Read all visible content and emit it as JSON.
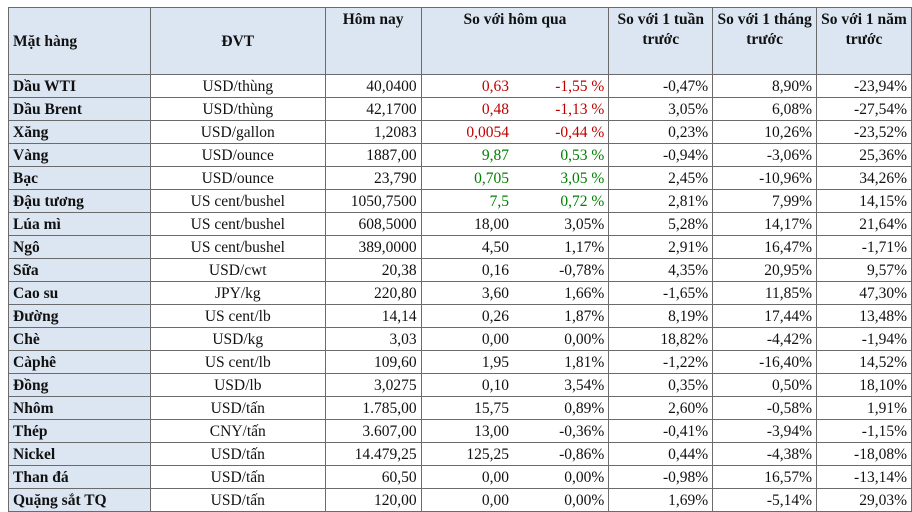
{
  "headers": {
    "item": "Mặt hàng",
    "unit": "ĐVT",
    "today": "Hôm nay",
    "vs_yesterday": "So với hôm  qua",
    "vs_week": "So với 1 tuần trước",
    "vs_month": "So với 1 tháng trước",
    "vs_year": "So với 1 năm trước"
  },
  "colors": {
    "header_bg": "#dce6f2",
    "negative": "#c00000",
    "positive": "#008000",
    "neutral": "#111111",
    "border": "#6b6b6b"
  },
  "rows": [
    {
      "item": "Dầu WTI",
      "unit": "USD/thùng",
      "price": "40,0400",
      "chg": "0,63",
      "pct": "-1,55 %",
      "week": "-0,47%",
      "month": "8,90%",
      "year": "-23,94%",
      "color": "neg"
    },
    {
      "item": "Dầu Brent",
      "unit": "USD/thùng",
      "price": "42,1700",
      "chg": "0,48",
      "pct": "-1,13 %",
      "week": "3,05%",
      "month": "6,08%",
      "year": "-27,54%",
      "color": "neg"
    },
    {
      "item": "Xăng",
      "unit": "USD/gallon",
      "price": "1,2083",
      "chg": "0,0054",
      "pct": "-0,44 %",
      "week": "0,23%",
      "month": "10,26%",
      "year": "-23,52%",
      "color": "neg"
    },
    {
      "item": "Vàng",
      "unit": "USD/ounce",
      "price": "1887,00",
      "chg": "9,87",
      "pct": "0,53 %",
      "week": "-0,94%",
      "month": "-3,06%",
      "year": "25,36%",
      "color": "pos"
    },
    {
      "item": "Bạc",
      "unit": "USD/ounce",
      "price": "23,790",
      "chg": "0,705",
      "pct": "3,05 %",
      "week": "2,45%",
      "month": "-10,96%",
      "year": "34,26%",
      "color": "pos"
    },
    {
      "item": "Đậu tương",
      "unit": "US cent/bushel",
      "price": "1050,7500",
      "chg": "7,5",
      "pct": "0,72 %",
      "week": "2,81%",
      "month": "7,99%",
      "year": "14,15%",
      "color": "pos"
    },
    {
      "item": "Lúa mì",
      "unit": "US cent/bushel",
      "price": "608,5000",
      "chg": "18,00",
      "pct": "3,05%",
      "week": "5,28%",
      "month": "14,17%",
      "year": "21,64%",
      "color": "blk"
    },
    {
      "item": "Ngô",
      "unit": "US cent/bushel",
      "price": "389,0000",
      "chg": "4,50",
      "pct": "1,17%",
      "week": "2,91%",
      "month": "16,47%",
      "year": "-1,71%",
      "color": "blk"
    },
    {
      "item": "Sữa",
      "unit": "USD/cwt",
      "price": "20,38",
      "chg": "0,16",
      "pct": "-0,78%",
      "week": "4,35%",
      "month": "20,95%",
      "year": "9,57%",
      "color": "blk"
    },
    {
      "item": "Cao su",
      "unit": "JPY/kg",
      "price": "220,80",
      "chg": "3,60",
      "pct": "1,66%",
      "week": "-1,65%",
      "month": "11,85%",
      "year": "47,30%",
      "color": "blk"
    },
    {
      "item": "Đường",
      "unit": "US cent/lb",
      "price": "14,14",
      "chg": "0,26",
      "pct": "1,87%",
      "week": "8,19%",
      "month": "17,44%",
      "year": "13,48%",
      "color": "blk"
    },
    {
      "item": "Chè",
      "unit": "USD/kg",
      "price": "3,03",
      "chg": "0,00",
      "pct": "0,00%",
      "week": "18,82%",
      "month": "-4,42%",
      "year": "-1,94%",
      "color": "blk"
    },
    {
      "item": "Càphê",
      "unit": "US cent/lb",
      "price": "109,60",
      "chg": "1,95",
      "pct": "1,81%",
      "week": "-1,22%",
      "month": "-16,40%",
      "year": "14,52%",
      "color": "blk"
    },
    {
      "item": "Đồng",
      "unit": "USD/lb",
      "price": "3,0275",
      "chg": "0,10",
      "pct": "3,54%",
      "week": "0,35%",
      "month": "0,50%",
      "year": "18,10%",
      "color": "blk"
    },
    {
      "item": "Nhôm",
      "unit": "USD/tấn",
      "price": "1.785,00",
      "chg": "15,75",
      "pct": "0,89%",
      "week": "2,60%",
      "month": "-0,58%",
      "year": "1,91%",
      "color": "blk"
    },
    {
      "item": "Thép",
      "unit": "CNY/tấn",
      "price": "3.607,00",
      "chg": "13,00",
      "pct": "-0,36%",
      "week": "-0,41%",
      "month": "-3,94%",
      "year": "-1,15%",
      "color": "blk"
    },
    {
      "item": "Nickel",
      "unit": "USD/tấn",
      "price": "14.479,25",
      "chg": "125,25",
      "pct": "-0,86%",
      "week": "0,44%",
      "month": "-4,38%",
      "year": "-18,08%",
      "color": "blk"
    },
    {
      "item": "Than đá",
      "unit": "USD/tấn",
      "price": "60,50",
      "chg": "0,00",
      "pct": "0,00%",
      "week": "-0,98%",
      "month": "16,57%",
      "year": "-13,14%",
      "color": "blk"
    },
    {
      "item": "Quặng sắt TQ",
      "unit": "USD/tấn",
      "price": "120,00",
      "chg": "0,00",
      "pct": "0,00%",
      "week": "1,69%",
      "month": "-5,14%",
      "year": "29,03%",
      "color": "blk"
    }
  ]
}
